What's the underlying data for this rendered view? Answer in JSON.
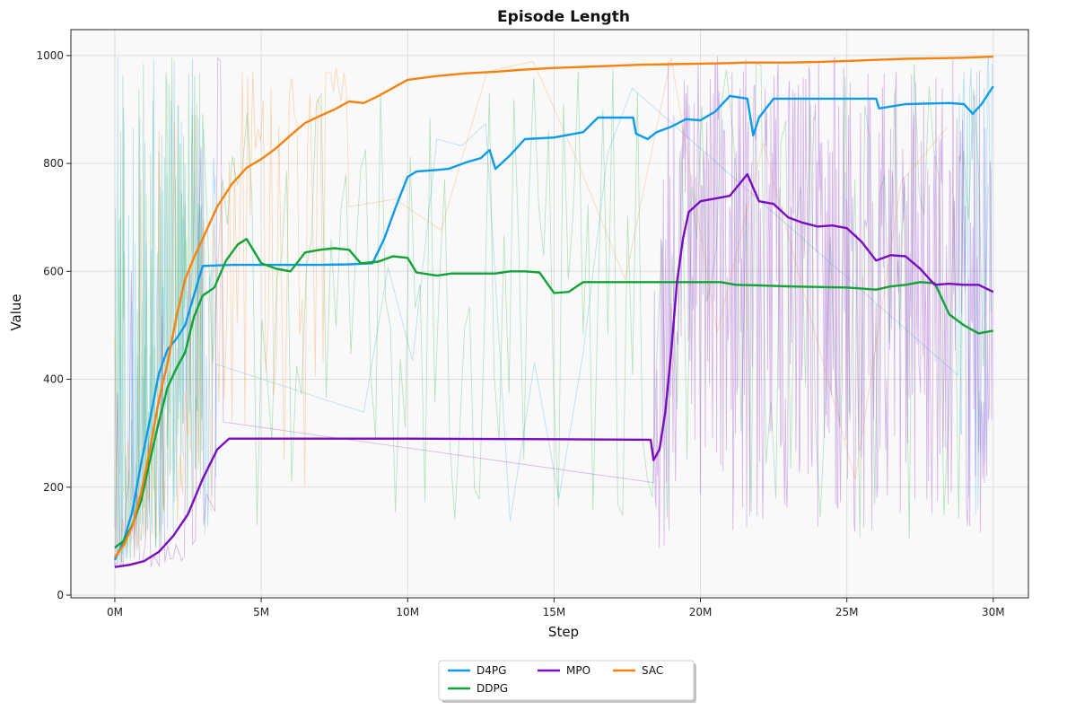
{
  "chart_data": {
    "type": "line",
    "title": "Episode Length",
    "xlabel": "Step",
    "ylabel": "Value",
    "xlim": [
      -1500000,
      31200000
    ],
    "ylim": [
      -5,
      1048
    ],
    "x_ticks": [
      0,
      5000000,
      10000000,
      15000000,
      20000000,
      25000000,
      30000000
    ],
    "x_tick_labels": [
      "0M",
      "5M",
      "10M",
      "15M",
      "20M",
      "25M",
      "30M"
    ],
    "y_ticks": [
      0,
      200,
      400,
      600,
      800,
      1000
    ],
    "y_tick_labels": [
      "0",
      "200",
      "400",
      "600",
      "800",
      "1000"
    ],
    "grid": true,
    "legend_position": "bottom-center",
    "series": [
      {
        "name": "D4PG",
        "color": "#0c9be8",
        "x": [
          0,
          300000,
          600000,
          900000,
          1200000,
          1500000,
          1800000,
          2100000,
          2400000,
          2700000,
          3000000,
          4000000,
          5000000,
          6000000,
          7000000,
          8000000,
          8800000,
          9200000,
          9600000,
          10000000,
          10300000,
          11000000,
          11400000,
          12000000,
          12500000,
          12800000,
          13000000,
          13500000,
          14000000,
          15000000,
          16000000,
          16500000,
          17700000,
          17800000,
          18200000,
          18500000,
          19000000,
          19500000,
          20000000,
          20500000,
          21000000,
          21600000,
          21800000,
          22000000,
          22500000,
          23000000,
          26000000,
          26100000,
          27000000,
          28500000,
          29000000,
          29300000,
          29600000,
          30000000
        ],
        "values": [
          65,
          100,
          155,
          245,
          325,
          410,
          455,
          475,
          500,
          555,
          610,
          612,
          612,
          612,
          612,
          613,
          615,
          660,
          720,
          775,
          785,
          788,
          790,
          802,
          810,
          825,
          790,
          815,
          845,
          848,
          858,
          885,
          885,
          855,
          845,
          858,
          868,
          882,
          880,
          896,
          925,
          920,
          852,
          885,
          920,
          920,
          920,
          902,
          910,
          912,
          910,
          892,
          910,
          943
        ]
      },
      {
        "name": "DDPG",
        "color": "#11a335",
        "x": [
          0,
          300000,
          600000,
          900000,
          1200000,
          1500000,
          1800000,
          2100000,
          2400000,
          2700000,
          3000000,
          3400000,
          3800000,
          4200000,
          4500000,
          5000000,
          5500000,
          6000000,
          6500000,
          7000000,
          7500000,
          8000000,
          8400000,
          9000000,
          9500000,
          10000000,
          10300000,
          11000000,
          11500000,
          12000000,
          13000000,
          13500000,
          14000000,
          14500000,
          15000000,
          15500000,
          16000000,
          16500000,
          17000000,
          18000000,
          19000000,
          20000000,
          20700000,
          21200000,
          22000000,
          23000000,
          25000000,
          26000000,
          26500000,
          27000000,
          27500000,
          28000000,
          28500000,
          29000000,
          29500000,
          30000000
        ],
        "values": [
          88,
          100,
          130,
          175,
          250,
          320,
          385,
          420,
          450,
          515,
          555,
          570,
          620,
          650,
          660,
          615,
          605,
          600,
          635,
          640,
          643,
          640,
          615,
          618,
          628,
          625,
          598,
          592,
          596,
          596,
          596,
          600,
          600,
          598,
          560,
          562,
          580,
          580,
          580,
          580,
          580,
          580,
          580,
          575,
          574,
          572,
          570,
          566,
          572,
          575,
          580,
          578,
          520,
          500,
          485,
          490
        ]
      },
      {
        "name": "MPO",
        "color": "#7a0cbf",
        "x": [
          0,
          500000,
          1000000,
          1500000,
          2000000,
          2500000,
          3000000,
          3500000,
          3900000,
          5000000,
          10000000,
          15000000,
          18300000,
          18400000,
          18600000,
          18800000,
          19000000,
          19200000,
          19400000,
          19600000,
          20000000,
          20500000,
          21000000,
          21600000,
          22000000,
          22500000,
          23000000,
          23500000,
          24000000,
          24500000,
          25000000,
          25500000,
          26000000,
          26500000,
          27000000,
          27500000,
          28000000,
          28500000,
          29000000,
          29500000,
          30000000
        ],
        "values": [
          52,
          56,
          63,
          80,
          110,
          150,
          215,
          270,
          290,
          290,
          290,
          289,
          288,
          250,
          270,
          340,
          450,
          580,
          660,
          710,
          730,
          735,
          740,
          780,
          730,
          725,
          700,
          690,
          683,
          685,
          680,
          655,
          620,
          630,
          628,
          605,
          575,
          577,
          575,
          575,
          562
        ]
      },
      {
        "name": "SAC",
        "color": "#f7820f",
        "x": [
          0,
          300000,
          600000,
          900000,
          1200000,
          1500000,
          1800000,
          2100000,
          2400000,
          2700000,
          3000000,
          3500000,
          4000000,
          4500000,
          5000000,
          5500000,
          6000000,
          6500000,
          7000000,
          7500000,
          8000000,
          8500000,
          9000000,
          9500000,
          10000000,
          11000000,
          12000000,
          13000000,
          14000000,
          15000000,
          16000000,
          17000000,
          18000000,
          19000000,
          20000000,
          21000000,
          21500000,
          22000000,
          23000000,
          24000000,
          25000000,
          26000000,
          27000000,
          28000000,
          29000000,
          30000000
        ],
        "values": [
          70,
          92,
          128,
          190,
          270,
          360,
          430,
          515,
          585,
          625,
          660,
          720,
          762,
          792,
          808,
          828,
          852,
          875,
          888,
          900,
          915,
          912,
          925,
          940,
          955,
          962,
          967,
          970,
          974,
          977,
          979,
          981,
          983,
          984,
          985,
          986,
          987,
          987,
          987,
          988,
          990,
          992,
          994,
          995,
          996,
          998
        ]
      }
    ],
    "legend": [
      "D4PG",
      "DDPG",
      "MPO",
      "SAC"
    ]
  }
}
